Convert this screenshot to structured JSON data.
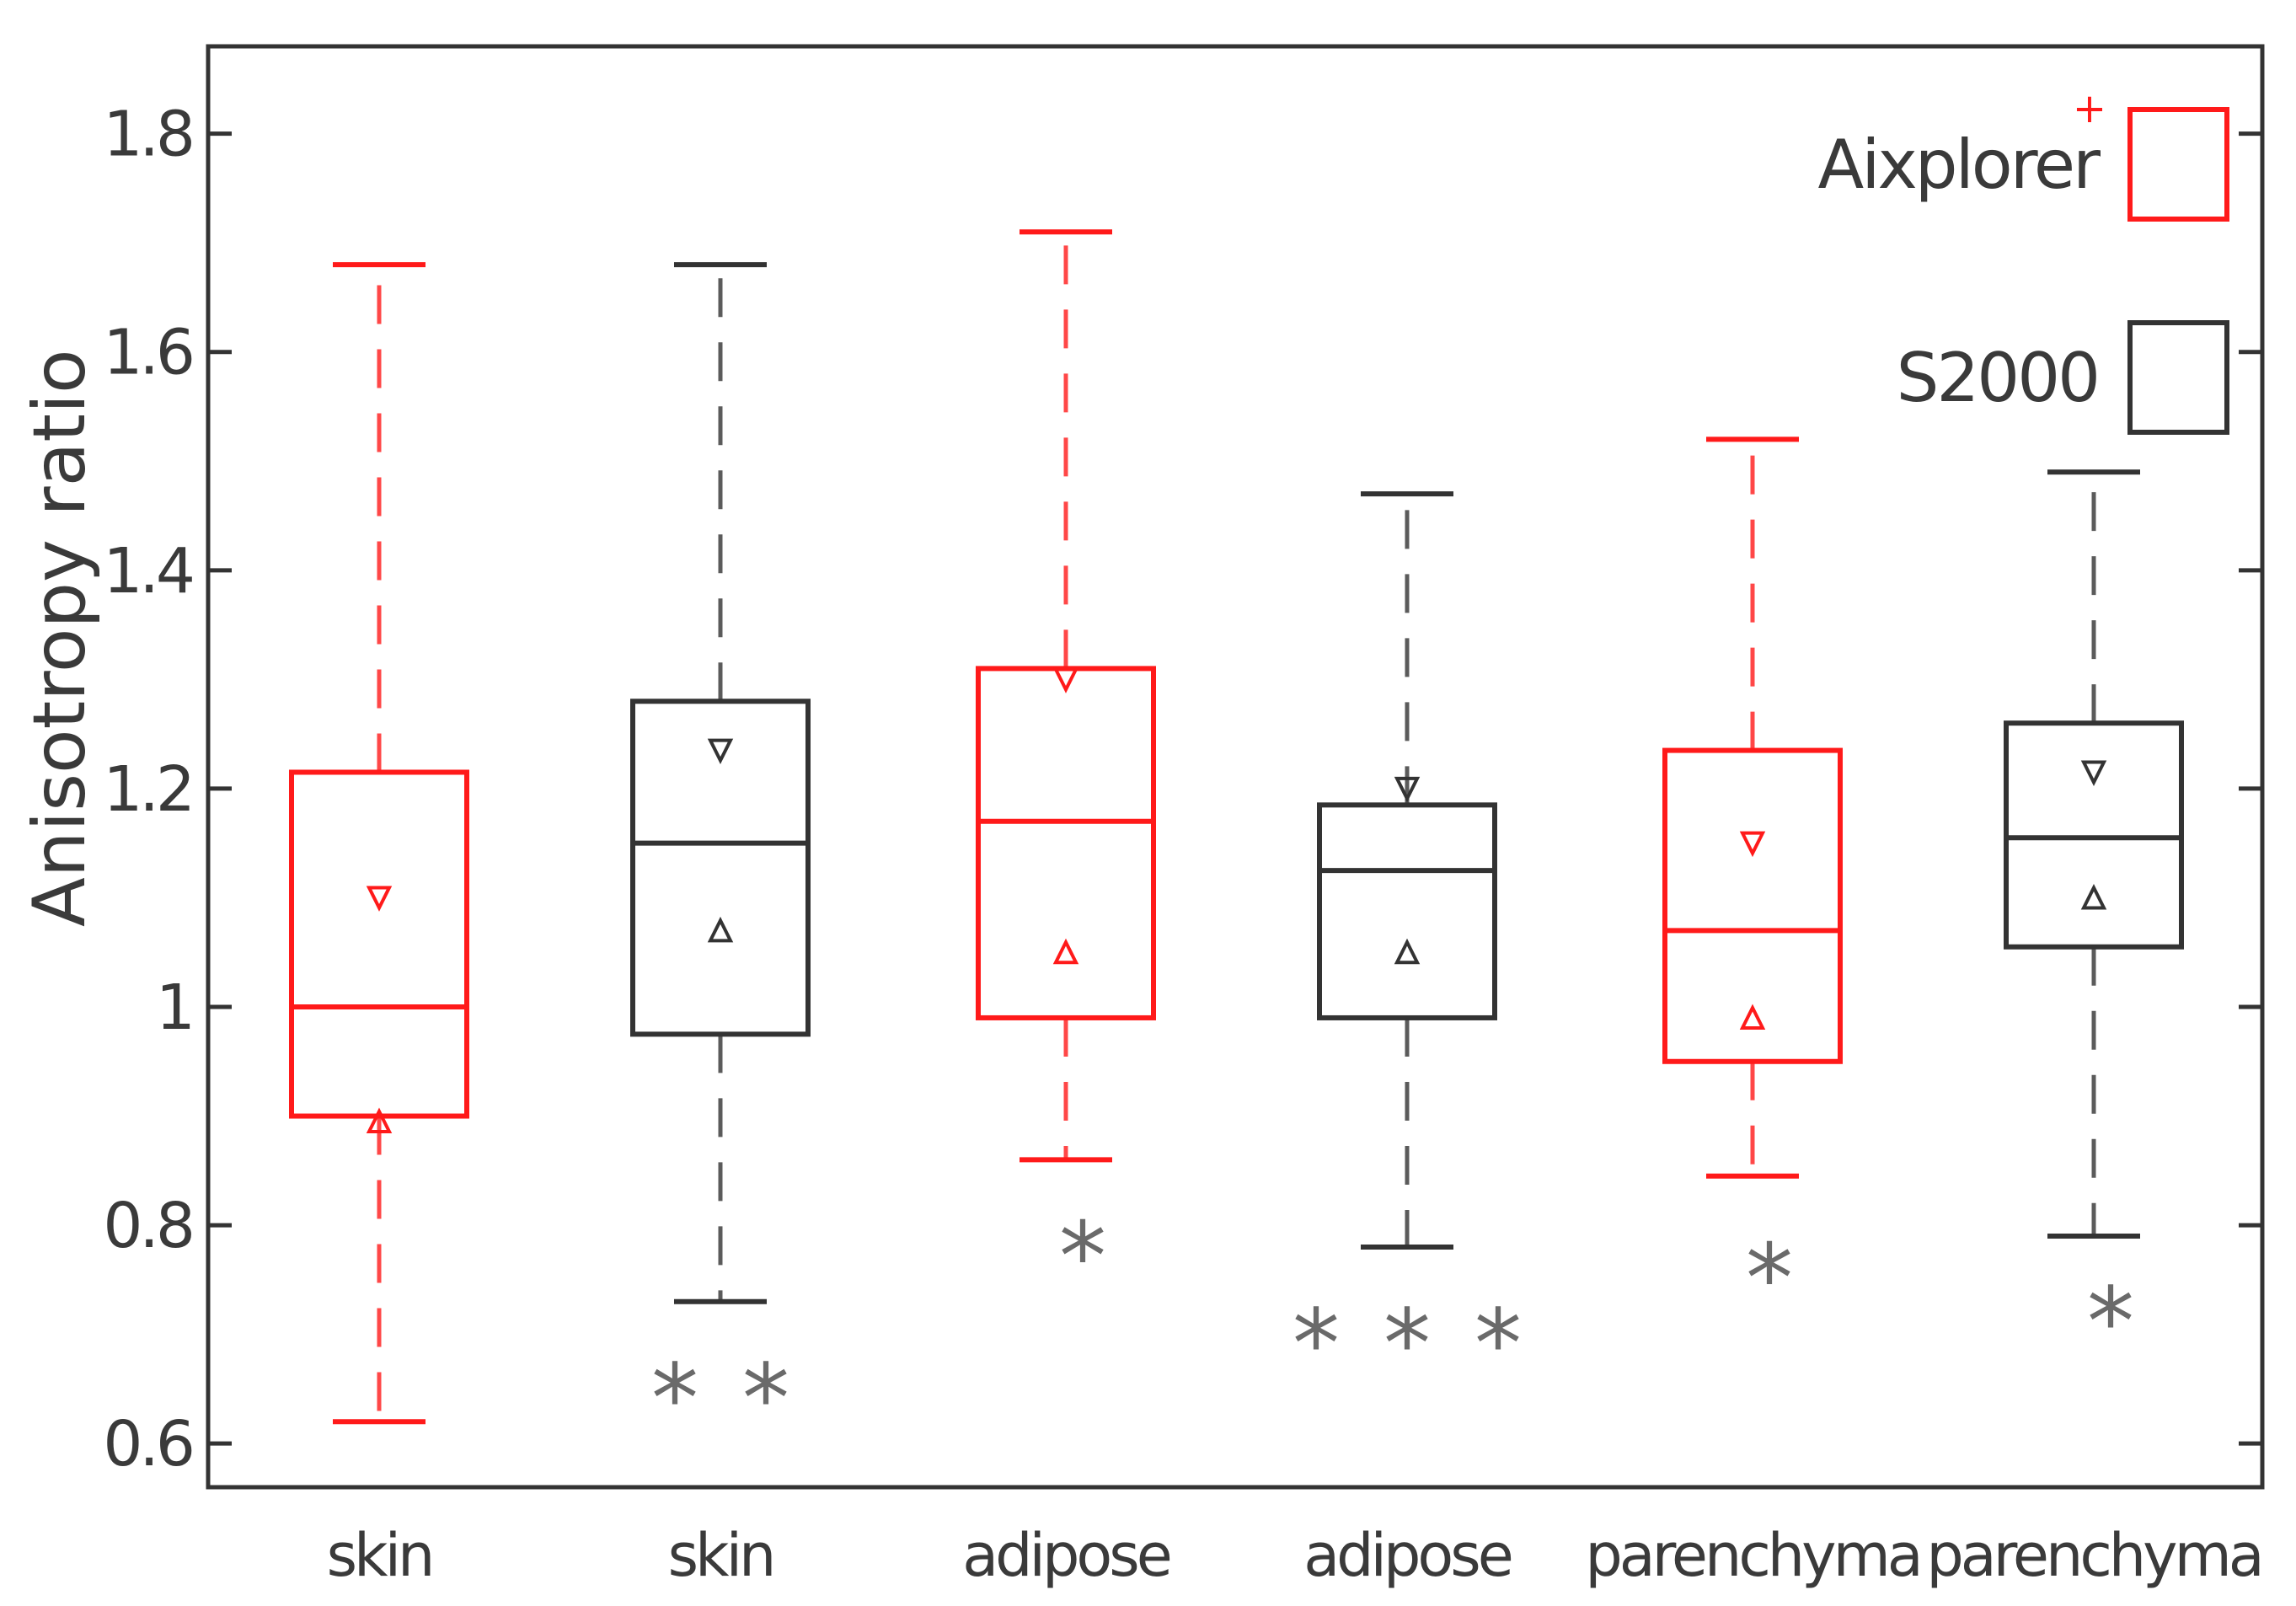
{
  "chart_data": {
    "type": "box",
    "title": "",
    "xlabel": "",
    "ylabel": "Anisotropy ratio",
    "ylim": [
      0.56,
      1.88
    ],
    "yticks": [
      0.6,
      0.8,
      1,
      1.2,
      1.4,
      1.6,
      1.8
    ],
    "ytick_labels": [
      "0.6",
      "0.8",
      "1",
      "1.2",
      "1.4",
      "1.6",
      "1.8"
    ],
    "grid": false,
    "legend": [
      {
        "label": "Aixplorer",
        "color": "#ff1a1a"
      },
      {
        "label": "S2000",
        "color": "#333333"
      }
    ],
    "legend_marker": "+",
    "outlier_symbol": "*",
    "boxes": [
      {
        "category": "skin",
        "series": "Aixplorer",
        "color": "#ff1a1a",
        "whisker_low": 0.62,
        "q1": 0.9,
        "median": 1.0,
        "q3": 1.215,
        "whisker_high": 1.68,
        "notch_high": 1.1,
        "notch_low": 0.895,
        "outliers": []
      },
      {
        "category": "skin",
        "series": "S2000",
        "color": "#333333",
        "whisker_low": 0.73,
        "q1": 0.975,
        "median": 1.15,
        "q3": 1.28,
        "whisker_high": 1.68,
        "notch_high": 1.235,
        "notch_low": 1.07,
        "outliers": [
          0.65,
          0.65
        ]
      },
      {
        "category": "adipose",
        "series": "Aixplorer",
        "color": "#ff1a1a",
        "whisker_low": 0.86,
        "q1": 0.99,
        "median": 1.17,
        "q3": 1.31,
        "whisker_high": 1.71,
        "notch_high": 1.3,
        "notch_low": 1.05,
        "outliers": [
          0.78
        ]
      },
      {
        "category": "adipose",
        "series": "S2000",
        "color": "#333333",
        "whisker_low": 0.78,
        "q1": 0.99,
        "median": 1.125,
        "q3": 1.185,
        "whisker_high": 1.47,
        "notch_high": 1.2,
        "notch_low": 1.05,
        "outliers": [
          0.7,
          0.7,
          0.7
        ]
      },
      {
        "category": "parenchyma",
        "series": "Aixplorer",
        "color": "#ff1a1a",
        "whisker_low": 0.845,
        "q1": 0.95,
        "median": 1.07,
        "q3": 1.235,
        "whisker_high": 1.52,
        "notch_high": 1.15,
        "notch_low": 0.99,
        "outliers": [
          0.76
        ]
      },
      {
        "category": "parenchyma",
        "series": "S2000",
        "color": "#333333",
        "whisker_low": 0.79,
        "q1": 1.055,
        "median": 1.155,
        "q3": 1.26,
        "whisker_high": 1.49,
        "notch_high": 1.215,
        "notch_low": 1.1,
        "outliers": [
          0.72
        ]
      }
    ]
  }
}
